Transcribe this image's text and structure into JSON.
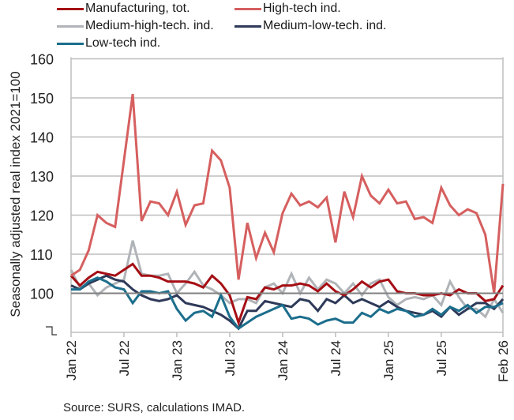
{
  "chart_data": {
    "type": "line",
    "title": "",
    "ylabel": "Seasonally adjusted real  index 2021=100",
    "xlabel": "",
    "ylim": [
      90,
      160
    ],
    "y_ticks": [
      100,
      110,
      120,
      130,
      140,
      150,
      160
    ],
    "y_tick_labels": [
      "100",
      "110",
      "120",
      "130",
      "140",
      "150",
      "160"
    ],
    "axis_break": true,
    "grid": true,
    "legend_position": "top",
    "x_tick_labels": [
      "Jan 22",
      "Jul 22",
      "Jan 23",
      "Jul 23",
      "Jan 24",
      "Jul 24",
      "Jan 25",
      "Jul 25",
      "Feb 26"
    ],
    "x_tick_index": [
      0,
      6,
      12,
      18,
      24,
      30,
      36,
      42,
      49
    ],
    "x": [
      "2022-01",
      "2022-02",
      "2022-03",
      "2022-04",
      "2022-05",
      "2022-06",
      "2022-07",
      "2022-08",
      "2022-09",
      "2022-10",
      "2022-11",
      "2022-12",
      "2023-01",
      "2023-02",
      "2023-03",
      "2023-04",
      "2023-05",
      "2023-06",
      "2023-07",
      "2023-08",
      "2023-09",
      "2023-10",
      "2023-11",
      "2023-12",
      "2024-01",
      "2024-02",
      "2024-03",
      "2024-04",
      "2024-05",
      "2024-06",
      "2024-07",
      "2024-08",
      "2024-09",
      "2024-10",
      "2024-11",
      "2024-12",
      "2025-01",
      "2025-02",
      "2025-03",
      "2025-04",
      "2025-05",
      "2025-06",
      "2025-07",
      "2025-08",
      "2025-09",
      "2025-10",
      "2025-11",
      "2025-12",
      "2026-01",
      "2026-02"
    ],
    "series": [
      {
        "name": "Manufacturing, tot.",
        "color": "#a50f15",
        "values": [
          104.5,
          102,
          104,
          105.5,
          105,
          104.5,
          106,
          107.5,
          104.5,
          104.5,
          104,
          103,
          103,
          103,
          102.5,
          101.5,
          104.5,
          102.5,
          99.5,
          92.5,
          99,
          98.5,
          101.5,
          101,
          102,
          102,
          102.5,
          102,
          100.5,
          102.5,
          100.5,
          99.5,
          101,
          103,
          101.5,
          103,
          103.5,
          100.5,
          100,
          100,
          99.5,
          99.5,
          100,
          99.5,
          101,
          100,
          100,
          98,
          98.5,
          102
        ]
      },
      {
        "name": "High-tech ind.",
        "color": "#d65f5f",
        "values": [
          104.5,
          106,
          111,
          120,
          118,
          117,
          134,
          151,
          118.5,
          123.5,
          123,
          120,
          126,
          117.5,
          122.5,
          123,
          136.5,
          134,
          127,
          103.5,
          118,
          109,
          115.5,
          110.5,
          120.5,
          125.5,
          122.5,
          123.5,
          122,
          124.5,
          113,
          126,
          119.5,
          130,
          125,
          123,
          126.5,
          123,
          123.5,
          119,
          119.5,
          118,
          127,
          122.5,
          120,
          121.5,
          120.5,
          115,
          100,
          128
        ]
      },
      {
        "name": "Medium-high-tech. ind.",
        "color": "#b0b4b8",
        "values": [
          106,
          101.5,
          102.5,
          99.5,
          101.5,
          102.5,
          103.5,
          113.5,
          105,
          104.5,
          104.5,
          105,
          100,
          102.5,
          105.5,
          102,
          101,
          99.5,
          97.5,
          98.5,
          98.5,
          97.5,
          101.5,
          102.5,
          100,
          105,
          100,
          104,
          101,
          103.5,
          102.5,
          100,
          102.5,
          99.5,
          102.5,
          103.5,
          99,
          97,
          98.5,
          99,
          98.5,
          99.5,
          97,
          103,
          99,
          96,
          96,
          94,
          98.5,
          95
        ]
      },
      {
        "name": "Medium-low-tech. ind.",
        "color": "#2e3a59",
        "values": [
          102,
          101,
          102.5,
          103.5,
          104.5,
          103.5,
          103,
          101,
          99.5,
          98.5,
          98,
          98.5,
          99.5,
          97.5,
          97,
          96.5,
          95.5,
          94.5,
          93,
          91,
          95.5,
          95.5,
          98,
          97.5,
          97,
          96.5,
          98.5,
          98,
          95.5,
          98.5,
          97.5,
          99.5,
          97.5,
          98.5,
          97.5,
          96.5,
          98,
          96.5,
          95.5,
          95,
          94.5,
          95.5,
          94,
          96.5,
          94.5,
          96,
          97.5,
          97.5,
          96,
          98.5
        ]
      },
      {
        "name": "Low-tech ind.",
        "color": "#1c6e8c",
        "values": [
          101,
          101,
          103,
          104,
          103,
          101.5,
          101,
          97.5,
          100.5,
          100.5,
          100,
          100.5,
          96,
          93,
          95,
          95.5,
          94,
          99.5,
          94,
          91,
          92.5,
          94,
          95,
          96,
          97,
          93.5,
          94,
          93.5,
          92,
          93,
          93.5,
          92.5,
          92.5,
          95,
          94,
          96,
          95,
          96,
          95.5,
          94,
          94.5,
          96,
          94.5,
          96.5,
          95.5,
          97,
          95,
          96.5,
          96.5,
          97.5
        ]
      }
    ]
  },
  "source": "Source: SURS, calculations IMAD."
}
